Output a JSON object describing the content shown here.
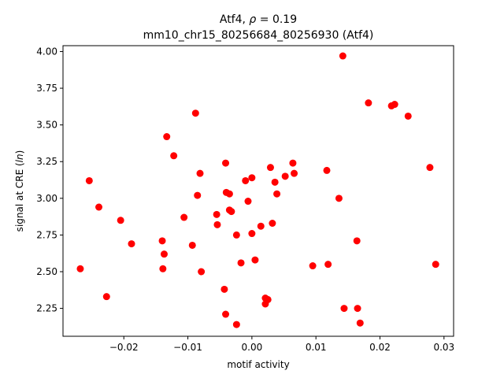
{
  "chart_data": {
    "type": "scatter",
    "title_line1_prefix": "Atf4, ",
    "title_line1_rho": "ρ",
    "title_line1_suffix": " = 0.19",
    "title_line2": "mm10_chr15_80256684_80256930 (Atf4)",
    "xlabel": "motif activity",
    "ylabel_prefix": "signal at CRE (",
    "ylabel_italic": "ln",
    "ylabel_suffix": ")",
    "xlim": [
      -0.0295,
      0.0315
    ],
    "ylim": [
      2.06,
      4.04
    ],
    "xticks": [
      -0.02,
      -0.01,
      0.0,
      0.01,
      0.02,
      0.03
    ],
    "xtick_labels": [
      "−0.02",
      "−0.01",
      "0.00",
      "0.01",
      "0.02",
      "0.03"
    ],
    "yticks": [
      2.25,
      2.5,
      2.75,
      3.0,
      3.25,
      3.5,
      3.75,
      4.0
    ],
    "ytick_labels": [
      "2.25",
      "2.50",
      "2.75",
      "3.00",
      "3.25",
      "3.50",
      "3.75",
      "4.00"
    ],
    "marker_color": "#ff0000",
    "grid": false,
    "points": [
      {
        "x": -0.0268,
        "y": 2.52
      },
      {
        "x": -0.0254,
        "y": 3.12
      },
      {
        "x": -0.0239,
        "y": 2.94
      },
      {
        "x": -0.0227,
        "y": 2.33
      },
      {
        "x": -0.0205,
        "y": 2.85
      },
      {
        "x": -0.0188,
        "y": 2.69
      },
      {
        "x": -0.014,
        "y": 2.71
      },
      {
        "x": -0.0139,
        "y": 2.52
      },
      {
        "x": -0.0137,
        "y": 2.62
      },
      {
        "x": -0.0133,
        "y": 3.42
      },
      {
        "x": -0.0122,
        "y": 3.29
      },
      {
        "x": -0.0106,
        "y": 2.87
      },
      {
        "x": -0.0093,
        "y": 2.68
      },
      {
        "x": -0.0088,
        "y": 3.58
      },
      {
        "x": -0.0085,
        "y": 3.02
      },
      {
        "x": -0.0081,
        "y": 3.17
      },
      {
        "x": -0.0079,
        "y": 2.5
      },
      {
        "x": -0.0055,
        "y": 2.89
      },
      {
        "x": -0.0054,
        "y": 2.82
      },
      {
        "x": -0.0043,
        "y": 2.38
      },
      {
        "x": -0.0041,
        "y": 3.24
      },
      {
        "x": -0.004,
        "y": 3.04
      },
      {
        "x": -0.0041,
        "y": 2.21
      },
      {
        "x": -0.0035,
        "y": 3.03
      },
      {
        "x": -0.0035,
        "y": 2.92
      },
      {
        "x": -0.0032,
        "y": 2.91
      },
      {
        "x": -0.0024,
        "y": 2.75
      },
      {
        "x": -0.0024,
        "y": 2.14
      },
      {
        "x": -0.0017,
        "y": 2.56
      },
      {
        "x": -0.001,
        "y": 3.12
      },
      {
        "x": -0.0006,
        "y": 2.98
      },
      {
        "x": 0.0,
        "y": 3.14
      },
      {
        "x": 0.0,
        "y": 2.76
      },
      {
        "x": 0.0005,
        "y": 2.58
      },
      {
        "x": 0.0014,
        "y": 2.81
      },
      {
        "x": 0.0021,
        "y": 2.32
      },
      {
        "x": 0.0021,
        "y": 2.28
      },
      {
        "x": 0.0025,
        "y": 2.31
      },
      {
        "x": 0.0029,
        "y": 3.21
      },
      {
        "x": 0.0032,
        "y": 2.83
      },
      {
        "x": 0.0036,
        "y": 3.11
      },
      {
        "x": 0.0039,
        "y": 3.03
      },
      {
        "x": 0.0052,
        "y": 3.15
      },
      {
        "x": 0.0064,
        "y": 3.24
      },
      {
        "x": 0.0066,
        "y": 3.17
      },
      {
        "x": 0.0095,
        "y": 2.54
      },
      {
        "x": 0.0117,
        "y": 3.19
      },
      {
        "x": 0.0119,
        "y": 2.55
      },
      {
        "x": 0.0136,
        "y": 3.0
      },
      {
        "x": 0.0142,
        "y": 3.97
      },
      {
        "x": 0.0144,
        "y": 2.25
      },
      {
        "x": 0.0164,
        "y": 2.71
      },
      {
        "x": 0.0165,
        "y": 2.25
      },
      {
        "x": 0.0169,
        "y": 2.15
      },
      {
        "x": 0.0182,
        "y": 3.65
      },
      {
        "x": 0.0218,
        "y": 3.63
      },
      {
        "x": 0.0223,
        "y": 3.64
      },
      {
        "x": 0.0244,
        "y": 3.56
      },
      {
        "x": 0.0278,
        "y": 3.21
      },
      {
        "x": 0.0287,
        "y": 2.55
      }
    ]
  }
}
